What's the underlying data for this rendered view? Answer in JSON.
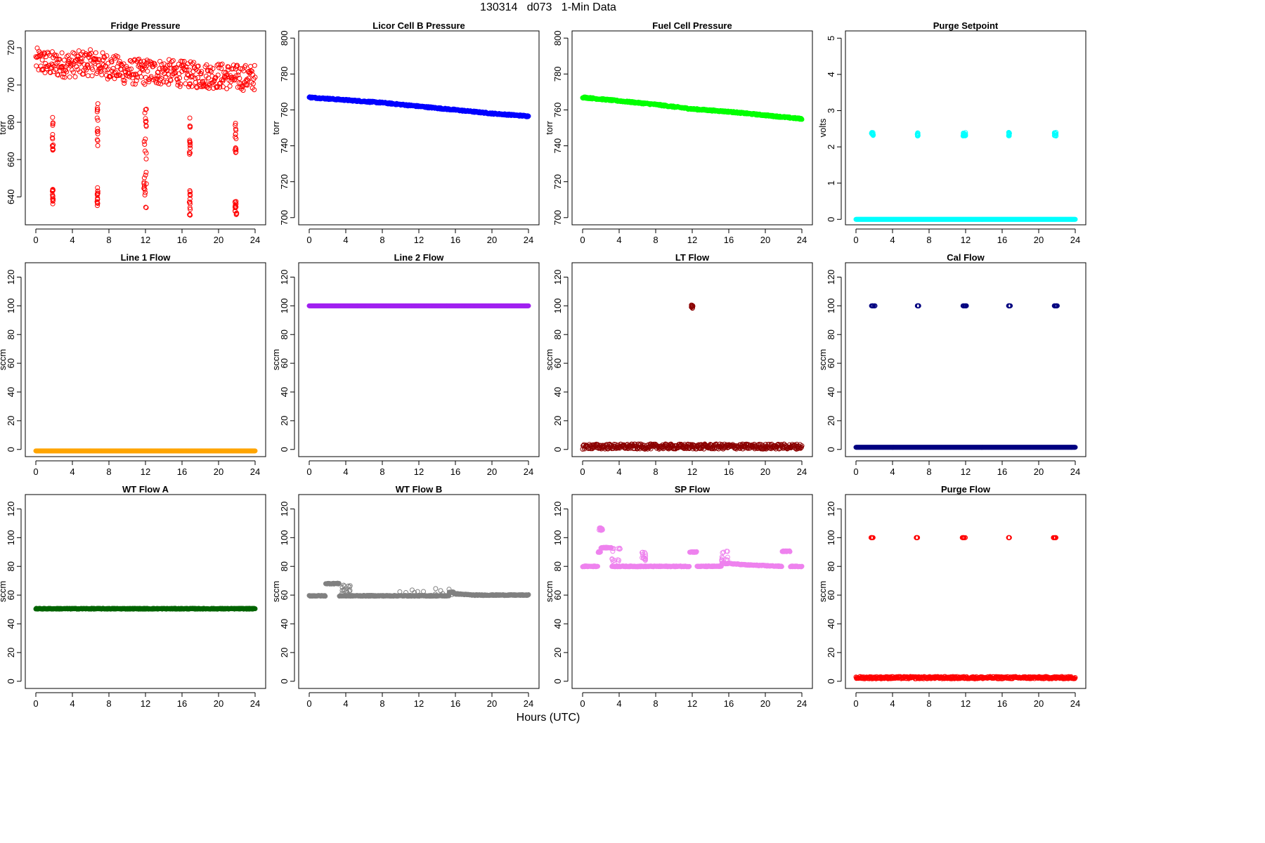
{
  "figure": {
    "title": "130314   d073   1-Min Data",
    "xlabel": "Hours (UTC)"
  },
  "chart_data": [
    {
      "type": "scatter",
      "title": "Fridge Pressure",
      "ylabel": "torr",
      "color": "#ff0000",
      "filled": false,
      "xlim": [
        0,
        24
      ],
      "ylim": [
        625,
        729
      ],
      "xticks": [
        0,
        4,
        8,
        12,
        16,
        20,
        24
      ],
      "yticks": [
        640,
        660,
        680,
        700,
        720
      ],
      "series": {
        "baseline": [
          [
            0,
            713
          ],
          [
            2,
            711
          ],
          [
            4,
            711
          ],
          [
            6,
            712
          ],
          [
            8,
            710
          ],
          [
            10,
            707
          ],
          [
            12,
            707
          ],
          [
            14,
            707
          ],
          [
            16,
            706
          ],
          [
            18,
            705
          ],
          [
            20,
            705
          ],
          [
            22,
            704
          ],
          [
            24,
            704
          ]
        ],
        "noise": 7,
        "dips": [
          [
            1.8,
            1.9,
            683,
            665
          ],
          [
            1.8,
            1.9,
            645,
            636
          ],
          [
            6.7,
            6.8,
            690,
            667
          ],
          [
            6.7,
            6.8,
            645,
            634
          ],
          [
            11.8,
            12.1,
            688,
            660
          ],
          [
            11.8,
            12.1,
            655,
            633
          ],
          [
            16.8,
            16.9,
            683,
            661
          ],
          [
            16.8,
            16.9,
            645,
            630
          ],
          [
            21.8,
            22.0,
            683,
            660
          ],
          [
            21.8,
            22.0,
            638,
            630
          ]
        ]
      }
    },
    {
      "type": "scatter",
      "title": "Licor Cell B Pressure",
      "ylabel": "torr",
      "color": "#0000ff",
      "filled": true,
      "xlim": [
        0,
        24
      ],
      "ylim": [
        696,
        804
      ],
      "xticks": [
        0,
        4,
        8,
        12,
        16,
        20,
        24
      ],
      "yticks": [
        700,
        720,
        740,
        760,
        780,
        800
      ],
      "series": {
        "baseline": [
          [
            0,
            767
          ],
          [
            4,
            765.5
          ],
          [
            8,
            764
          ],
          [
            12,
            762
          ],
          [
            16,
            760
          ],
          [
            20,
            758
          ],
          [
            24,
            756.5
          ]
        ],
        "noise": 0.4,
        "dips": []
      }
    },
    {
      "type": "scatter",
      "title": "Fuel Cell Pressure",
      "ylabel": "torr",
      "color": "#00ff00",
      "filled": true,
      "xlim": [
        0,
        24
      ],
      "ylim": [
        696,
        804
      ],
      "xticks": [
        0,
        4,
        8,
        12,
        16,
        20,
        24
      ],
      "yticks": [
        700,
        720,
        740,
        760,
        780,
        800
      ],
      "series": {
        "baseline": [
          [
            0,
            767
          ],
          [
            4,
            765
          ],
          [
            8,
            763
          ],
          [
            12,
            760.5
          ],
          [
            16,
            759
          ],
          [
            20,
            757
          ],
          [
            24,
            755
          ]
        ],
        "noise": 0.4,
        "dips": []
      }
    },
    {
      "type": "scatter",
      "title": "Purge Setpoint",
      "ylabel": "volts",
      "color": "#00ffff",
      "filled": false,
      "xlim": [
        0,
        24
      ],
      "ylim": [
        -0.15,
        5.2
      ],
      "xticks": [
        0,
        4,
        8,
        12,
        16,
        20,
        24
      ],
      "yticks": [
        0,
        1,
        2,
        3,
        4,
        5
      ],
      "series": {
        "baseline": [
          [
            0,
            0
          ],
          [
            24,
            0
          ]
        ],
        "noise": 0,
        "dips": [
          [
            1.7,
            1.9,
            2.4,
            2.3
          ],
          [
            6.7,
            6.8,
            2.4,
            2.3
          ],
          [
            11.7,
            12.0,
            2.4,
            2.3
          ],
          [
            16.7,
            16.8,
            2.4,
            2.3
          ],
          [
            21.7,
            21.9,
            2.4,
            2.3
          ]
        ]
      }
    },
    {
      "type": "scatter",
      "title": "Line 1 Flow",
      "ylabel": "sccm",
      "color": "#ffa500",
      "filled": true,
      "xlim": [
        0,
        24
      ],
      "ylim": [
        -5,
        130
      ],
      "xticks": [
        0,
        4,
        8,
        12,
        16,
        20,
        24
      ],
      "yticks": [
        0,
        20,
        40,
        60,
        80,
        100,
        120
      ],
      "series": {
        "baseline": [
          [
            0,
            -1
          ],
          [
            24,
            -1
          ]
        ],
        "noise": 0,
        "dips": []
      }
    },
    {
      "type": "scatter",
      "title": "Line 2 Flow",
      "ylabel": "sccm",
      "color": "#a020f0",
      "filled": true,
      "xlim": [
        0,
        24
      ],
      "ylim": [
        -5,
        130
      ],
      "xticks": [
        0,
        4,
        8,
        12,
        16,
        20,
        24
      ],
      "yticks": [
        0,
        20,
        40,
        60,
        80,
        100,
        120
      ],
      "series": {
        "baseline": [
          [
            0,
            100
          ],
          [
            24,
            100
          ]
        ],
        "noise": 0,
        "dips": []
      }
    },
    {
      "type": "scatter",
      "title": "LT Flow",
      "ylabel": "sccm",
      "color": "#8b0000",
      "filled": false,
      "xlim": [
        0,
        24
      ],
      "ylim": [
        -5,
        130
      ],
      "xticks": [
        0,
        4,
        8,
        12,
        16,
        20,
        24
      ],
      "yticks": [
        0,
        20,
        40,
        60,
        80,
        100,
        120
      ],
      "series": {
        "baseline": [
          [
            0,
            2
          ],
          [
            24,
            2
          ]
        ],
        "noise": 1.8,
        "dips": [
          [
            11.9,
            12.1,
            101,
            98
          ]
        ]
      }
    },
    {
      "type": "scatter",
      "title": "Cal Flow",
      "ylabel": "sccm",
      "color": "#000080",
      "filled": true,
      "xlim": [
        0,
        24
      ],
      "ylim": [
        -5,
        130
      ],
      "xticks": [
        0,
        4,
        8,
        12,
        16,
        20,
        24
      ],
      "yticks": [
        0,
        20,
        40,
        60,
        80,
        100,
        120
      ],
      "series": {
        "baseline": [
          [
            0,
            1.5
          ],
          [
            24,
            1.5
          ]
        ],
        "noise": 0,
        "dips": [
          [
            1.7,
            2.1,
            100,
            100
          ],
          [
            6.7,
            6.9,
            100,
            100
          ],
          [
            11.7,
            12.1,
            100,
            100
          ],
          [
            16.7,
            16.9,
            100,
            100
          ],
          [
            21.7,
            22.1,
            100,
            100
          ]
        ]
      }
    },
    {
      "type": "scatter",
      "title": "WT Flow A",
      "ylabel": "sccm",
      "color": "#006400",
      "filled": true,
      "xlim": [
        0,
        24
      ],
      "ylim": [
        -5,
        130
      ],
      "xticks": [
        0,
        4,
        8,
        12,
        16,
        20,
        24
      ],
      "yticks": [
        0,
        20,
        40,
        60,
        80,
        100,
        120
      ],
      "series": {
        "baseline": [
          [
            0,
            50.5
          ],
          [
            24,
            50.5
          ]
        ],
        "noise": 0.3,
        "dips": []
      }
    },
    {
      "type": "scatter",
      "title": "WT Flow B",
      "ylabel": "sccm",
      "color": "#808080",
      "filled": true,
      "xlim": [
        0,
        24
      ],
      "ylim": [
        -5,
        130
      ],
      "xticks": [
        0,
        4,
        8,
        12,
        16,
        20,
        24
      ],
      "yticks": [
        0,
        20,
        40,
        60,
        80,
        100,
        120
      ],
      "series": {
        "baseline": [
          [
            0,
            59.5
          ],
          [
            1.8,
            59.5
          ],
          [
            1.8,
            68
          ],
          [
            3.3,
            68
          ],
          [
            3.3,
            59.5
          ],
          [
            15.3,
            59.5
          ],
          [
            15.3,
            62
          ],
          [
            15.8,
            62
          ],
          [
            15.8,
            61
          ],
          [
            18,
            60
          ],
          [
            24,
            60
          ]
        ],
        "noise": 0.3,
        "dips": [
          [
            3.5,
            4.5,
            68,
            61
          ],
          [
            9.5,
            15.8,
            65,
            60
          ]
        ]
      }
    },
    {
      "type": "scatter",
      "title": "SP Flow",
      "ylabel": "sccm",
      "color": "#ee82ee",
      "filled": true,
      "xlim": [
        0,
        24
      ],
      "ylim": [
        -5,
        130
      ],
      "xticks": [
        0,
        4,
        8,
        12,
        16,
        20,
        24
      ],
      "yticks": [
        0,
        20,
        40,
        60,
        80,
        100,
        120
      ],
      "series": {
        "baseline": [
          [
            0,
            80
          ],
          [
            1.7,
            80
          ],
          [
            1.7,
            90
          ],
          [
            2.0,
            90
          ],
          [
            2.0,
            93
          ],
          [
            3.2,
            93
          ],
          [
            3.2,
            80
          ],
          [
            11.7,
            80
          ],
          [
            11.7,
            90
          ],
          [
            12.5,
            90
          ],
          [
            12.5,
            80
          ],
          [
            15.2,
            80
          ],
          [
            15.2,
            82
          ],
          [
            16,
            82
          ],
          [
            18,
            81
          ],
          [
            21.8,
            80
          ],
          [
            21.8,
            90.5
          ],
          [
            22.7,
            90.5
          ],
          [
            22.7,
            80
          ],
          [
            24,
            80
          ]
        ],
        "noise": 0.3,
        "dips": [
          [
            1.8,
            2.2,
            107,
            105
          ],
          [
            3.2,
            4.3,
            93,
            83
          ],
          [
            15.2,
            16.0,
            91,
            82
          ],
          [
            6.5,
            6.9,
            90,
            84
          ]
        ]
      }
    },
    {
      "type": "scatter",
      "title": "Purge Flow",
      "ylabel": "sccm",
      "color": "#ff0000",
      "filled": false,
      "xlim": [
        0,
        24
      ],
      "ylim": [
        -5,
        130
      ],
      "xticks": [
        0,
        4,
        8,
        12,
        16,
        20,
        24
      ],
      "yticks": [
        0,
        20,
        40,
        60,
        80,
        100,
        120
      ],
      "series": {
        "baseline": [
          [
            0,
            2.5
          ],
          [
            24,
            2.5
          ]
        ],
        "noise": 0.8,
        "dips": [
          [
            1.6,
            1.9,
            100,
            100
          ],
          [
            6.6,
            6.8,
            100,
            100
          ],
          [
            11.6,
            12.0,
            100,
            100
          ],
          [
            16.7,
            16.8,
            100,
            100
          ],
          [
            21.6,
            21.9,
            100,
            100
          ]
        ]
      }
    }
  ]
}
